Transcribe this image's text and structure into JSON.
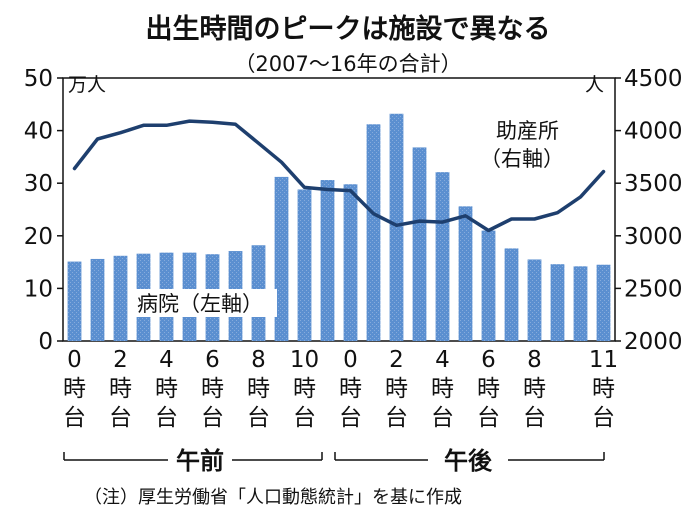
{
  "chart_data": {
    "type": "bar+line",
    "title": "出生時間のピークは施設で異なる",
    "subtitle": "（2007〜16年の合計）",
    "left_axis": {
      "unit": "万人",
      "range": [
        0,
        50
      ],
      "ticks": [
        "0",
        "10",
        "20",
        "30",
        "40",
        "50"
      ]
    },
    "right_axis": {
      "unit": "人",
      "range": [
        2000,
        4500
      ],
      "ticks": [
        "2000",
        "2500",
        "3000",
        "3500",
        "4000",
        "4500"
      ]
    },
    "x_tick_labels": [
      {
        "num": "0",
        "unit": "時台"
      },
      {
        "num": "2",
        "unit": "時台"
      },
      {
        "num": "4",
        "unit": "時台"
      },
      {
        "num": "6",
        "unit": "時台"
      },
      {
        "num": "8",
        "unit": "時台"
      },
      {
        "num": "10",
        "unit": "時台"
      },
      {
        "num": "0",
        "unit": "時台"
      },
      {
        "num": "2",
        "unit": "時台"
      },
      {
        "num": "4",
        "unit": "時台"
      },
      {
        "num": "6",
        "unit": "時台"
      },
      {
        "num": "8",
        "unit": "時台"
      },
      {
        "num": "11",
        "unit": "時台"
      }
    ],
    "x_tick_index": [
      0,
      2,
      4,
      6,
      8,
      10,
      12,
      14,
      16,
      18,
      20,
      23
    ],
    "groups": [
      "午前",
      "午後"
    ],
    "series": [
      {
        "name": "病院（左軸）",
        "type": "bar",
        "axis": "left",
        "values": [
          15.1,
          15.6,
          16.2,
          16.6,
          16.8,
          16.8,
          16.5,
          17.1,
          18.2,
          31.2,
          28.8,
          30.6,
          29.8,
          41.2,
          43.2,
          36.8,
          32.1,
          25.6,
          21.0,
          17.6,
          15.5,
          14.6,
          14.2,
          14.5
        ]
      },
      {
        "name": "助産所（右軸）",
        "type": "line",
        "axis": "right",
        "values": [
          3640,
          3920,
          3980,
          4050,
          4050,
          4090,
          4080,
          4060,
          3880,
          3700,
          3460,
          3440,
          3430,
          3210,
          3100,
          3140,
          3130,
          3190,
          3050,
          3160,
          3160,
          3220,
          3370,
          3610
        ]
      }
    ],
    "label_line1": "助産所",
    "label_line2": "（右軸）",
    "label_bars": "病院（左軸）",
    "colors": {
      "bar": "#5b8fd0",
      "line": "#1e3f6e"
    }
  },
  "note": "（注）厚生労働省「人口動態統計」を基に作成"
}
